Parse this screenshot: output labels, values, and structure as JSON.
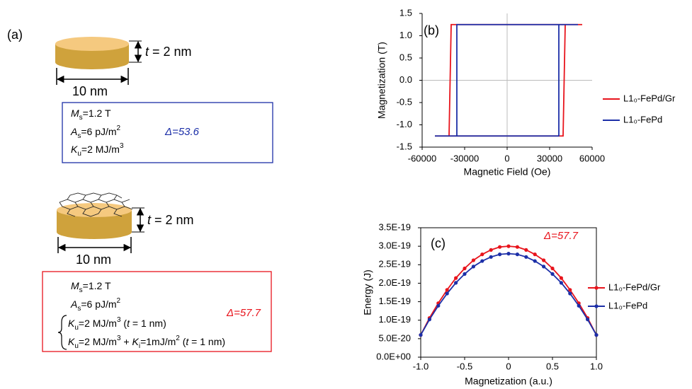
{
  "panel_a": {
    "label": "(a)",
    "disks": [
      {
        "thickness": [
          "t",
          " = 2 nm"
        ],
        "width": "10 nm",
        "params": [
          [
            "M",
            "s",
            "=1.2 T"
          ],
          [
            "A",
            "s",
            "=6 pJ/m",
            "2"
          ],
          [
            "K",
            "u",
            "=2 MJ/m",
            "3"
          ]
        ],
        "delta": "Δ=53.6"
      },
      {
        "thickness": [
          "t",
          " = 2 nm"
        ],
        "width": "10 nm",
        "params": [
          [
            "M",
            "s",
            "=1.2 T"
          ],
          [
            "A",
            "s",
            "=6 pJ/m",
            "2"
          ],
          [
            "K",
            "u",
            "=2 MJ/m",
            "3",
            " (",
            "t",
            " = 1 nm)"
          ],
          [
            "K",
            "u",
            "=2 MJ/m",
            "3",
            " + ",
            "K",
            "i",
            "=1mJ/m",
            "2",
            " (",
            "t",
            " = 1 nm)"
          ]
        ],
        "delta": "Δ=57.7"
      }
    ]
  },
  "chart_data": [
    {
      "type": "line",
      "label": "(b)",
      "x_label": "Magnetic Field (Oe)",
      "y_label": "Magnetization (T)",
      "xlim": [
        -60000,
        60000
      ],
      "xticks": [
        -60000,
        -30000,
        0,
        30000,
        60000
      ],
      "ylim": [
        -1.5,
        1.5
      ],
      "yticks": [
        -1.5,
        {
          "value": -1,
          "label": "-1.0"
        },
        -0.5,
        {
          "value": 0,
          "label": "0.0"
        },
        0.5,
        {
          "value": 1,
          "label": "1.0"
        },
        1.5
      ],
      "zero_lines": true,
      "frame": false,
      "markers": false,
      "series": [
        {
          "name": "L1₀-FePd/Gr",
          "color": "#e8141c",
          "x": [
            -51000,
            39500,
            41000,
            53000,
            -39500,
            -41000,
            -51000
          ],
          "values": [
            -1.25,
            -1.25,
            1.25,
            1.25,
            1.25,
            -1.25,
            -1.25
          ]
        },
        {
          "name": "L1₀-FePd",
          "color": "#1c2fa8",
          "x": [
            -35500,
            36500,
            36500,
            50000,
            -35500,
            -35500,
            -51000
          ],
          "values": [
            -1.25,
            -1.25,
            1.25,
            1.25,
            1.25,
            -1.25,
            -1.25
          ]
        }
      ]
    },
    {
      "type": "line",
      "label": "(c)",
      "x_label": "Magnetization (a.u.)",
      "y_label": "Energy (J)",
      "annotation": "Δ=57.7",
      "xlim": [
        -1,
        1
      ],
      "xticks": [
        {
          "value": -1,
          "label": "-1.0"
        },
        -0.5,
        0,
        0.5,
        {
          "value": 1,
          "label": "1.0"
        }
      ],
      "ylim": [
        0,
        3.5e-19
      ],
      "yticks": [
        {
          "value": 0,
          "label": "0.0E+00"
        },
        {
          "value": 5e-20,
          "label": "5.0E-20"
        },
        {
          "value": 1e-19,
          "label": "1.0E-19"
        },
        {
          "value": 1.5e-19,
          "label": "1.5E-19"
        },
        {
          "value": 2e-19,
          "label": "2.0E-19"
        },
        {
          "value": 2.5e-19,
          "label": "2.5E-19"
        },
        {
          "value": 3e-19,
          "label": "3.0E-19"
        },
        {
          "value": 3.5e-19,
          "label": "3.5E-19"
        }
      ],
      "zero_lines": false,
      "frame": true,
      "markers": true,
      "x": [
        -1,
        -0.9,
        -0.8,
        -0.7,
        -0.6,
        -0.5,
        -0.4,
        -0.3,
        -0.2,
        -0.1,
        0,
        0.1,
        0.2,
        0.3,
        0.4,
        0.5,
        0.6,
        0.7,
        0.8,
        0.9,
        1
      ],
      "series": [
        {
          "name": "L1₀-FePd/Gr",
          "color": "#e8141c",
          "values": [
            6e-20,
            1.06e-19,
            1.46e-19,
            1.82e-19,
            2.14e-19,
            2.4e-19,
            2.62e-19,
            2.78e-19,
            2.9e-19,
            2.98e-19,
            3e-19,
            2.98e-19,
            2.9e-19,
            2.78e-19,
            2.62e-19,
            2.4e-19,
            2.14e-19,
            1.82e-19,
            1.46e-19,
            1.06e-19,
            6e-20
          ]
        },
        {
          "name": "L1₀-FePd",
          "color": "#1c2fa8",
          "values": [
            6e-20,
            1.02e-19,
            1.39e-19,
            1.72e-19,
            2.01e-19,
            2.25e-19,
            2.45e-19,
            2.6e-19,
            2.71e-19,
            2.78e-19,
            2.8e-19,
            2.78e-19,
            2.71e-19,
            2.6e-19,
            2.45e-19,
            2.25e-19,
            2.01e-19,
            1.72e-19,
            1.39e-19,
            1.02e-19,
            6e-20
          ]
        }
      ]
    }
  ]
}
